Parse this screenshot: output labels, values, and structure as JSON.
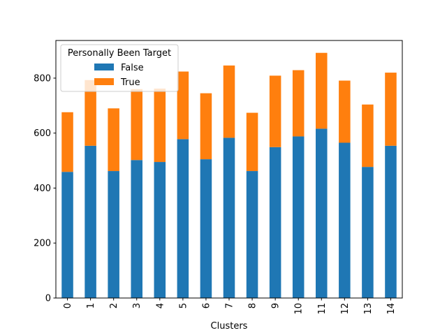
{
  "chart_data": {
    "type": "bar",
    "stacked": true,
    "categories": [
      "0",
      "1",
      "2",
      "3",
      "4",
      "5",
      "6",
      "7",
      "8",
      "9",
      "10",
      "11",
      "12",
      "13",
      "14"
    ],
    "series": [
      {
        "name": "False",
        "color": "#1f77b4",
        "values": [
          459,
          554,
          462,
          502,
          495,
          578,
          505,
          583,
          462,
          549,
          588,
          616,
          565,
          477,
          554
        ]
      },
      {
        "name": "True",
        "color": "#ff7f0e",
        "values": [
          217,
          239,
          228,
          258,
          267,
          246,
          240,
          263,
          212,
          260,
          241,
          276,
          226,
          227,
          266
        ]
      }
    ],
    "xlabel": "Clusters",
    "ylabel": "",
    "ylim": [
      0,
      937
    ],
    "yticks": [
      0,
      200,
      400,
      600,
      800
    ],
    "legend": {
      "title": "Personally Been Target",
      "placement": "top-left"
    },
    "grid": false
  }
}
